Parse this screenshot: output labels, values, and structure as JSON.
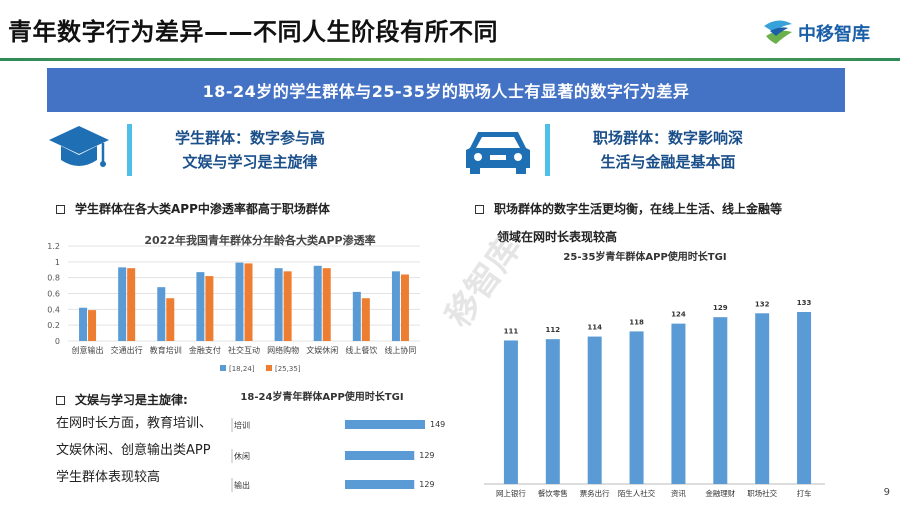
{
  "page": {
    "title": "青年数字行为差异——不同人生阶段有所不同",
    "logo_text": "中移智库",
    "banner": "18-24岁的学生群体与25-35岁的职场人士有显著的数字行为差异",
    "page_number": "9",
    "watermark": "移智库"
  },
  "student": {
    "icon": "graduation-cap-icon",
    "heading_line1": "学生群体：数字参与高",
    "heading_line2": "文娱与学习是主旋律",
    "bullet1": "学生群体在各大类APP中渗透率都高于职场群体",
    "bullet2": "文娱与学习是主旋律:",
    "body_lines": [
      "在网时长方面，教育培训、",
      "文娱休闲、创意输出类APP",
      "学生群体表现较高"
    ]
  },
  "professional": {
    "icon": "car-icon",
    "heading_line1": "职场群体：数字影响深",
    "heading_line2": "生活与金融是基本面",
    "bullet1_line1": "职场群体的数字生活更均衡，在线上生活、线上金融等",
    "bullet1_line2": "领域在网时长表现较高"
  },
  "colors": {
    "blue": "#5b9bd5",
    "orange": "#ed7d31",
    "banner": "#4472c4",
    "accent_bar": "#4ec0e8"
  },
  "chart_data": [
    {
      "type": "bar",
      "title": "2022年我国青年群体分年龄各大类APP渗透率",
      "categories": [
        "创意输出",
        "交通出行",
        "教育培训",
        "金融支付",
        "社交互动",
        "网络购物",
        "文娱休闲",
        "线上餐饮",
        "线上协同"
      ],
      "series": [
        {
          "name": "[18,24]",
          "values": [
            0.42,
            0.93,
            0.68,
            0.87,
            0.99,
            0.92,
            0.95,
            0.62,
            0.88
          ]
        },
        {
          "name": "[25,35]",
          "values": [
            0.39,
            0.92,
            0.54,
            0.82,
            0.98,
            0.88,
            0.92,
            0.54,
            0.84
          ]
        }
      ],
      "ylim": [
        0,
        1.2
      ],
      "yticks": [
        "0",
        "0.2",
        "0.4",
        "0.6",
        "0.8",
        "1",
        "1.2"
      ],
      "legend": "bottom"
    },
    {
      "type": "bar",
      "orientation": "horizontal",
      "title": "18-24岁青年群体APP使用时长TGI",
      "categories": [
        "培训",
        "休闲",
        "输出"
      ],
      "values": [
        149,
        129,
        129
      ]
    },
    {
      "type": "bar",
      "title": "25-35岁青年群体APP使用时长TGI",
      "categories": [
        "网上银行",
        "餐饮零售",
        "票务出行",
        "陌生人社交",
        "资讯",
        "金融理财",
        "职场社交",
        "打车"
      ],
      "values": [
        111,
        112,
        114,
        118,
        124,
        129,
        132,
        133
      ]
    }
  ]
}
